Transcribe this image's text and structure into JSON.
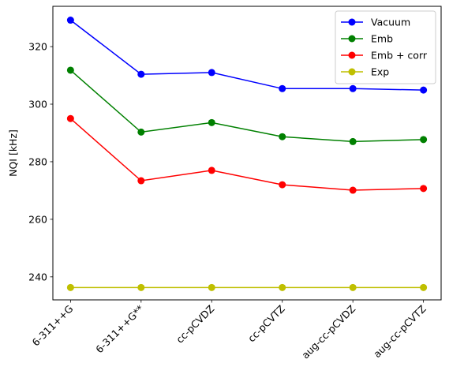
{
  "chart_data": {
    "type": "line",
    "title": "",
    "xlabel": "",
    "ylabel": "NQI [kHz]",
    "categories": [
      "6-311++G",
      "6-311++G**",
      "cc-pCVDZ",
      "cc-pCVTZ",
      "aug-cc-pCVDZ",
      "aug-cc-pCVTZ"
    ],
    "ylim": [
      232,
      334
    ],
    "yticks": [
      240,
      260,
      280,
      300,
      320
    ],
    "grid": false,
    "legend_position": "top-right",
    "series": [
      {
        "name": "Vacuum",
        "color": "#0000ff",
        "values": [
          329.2,
          310.4,
          311.0,
          305.4,
          305.4,
          304.9
        ]
      },
      {
        "name": "Emb",
        "color": "#008000",
        "values": [
          311.8,
          290.3,
          293.6,
          288.7,
          287.0,
          287.7
        ]
      },
      {
        "name": "Emb + corr",
        "color": "#ff0000",
        "values": [
          295.0,
          273.4,
          277.0,
          272.0,
          270.1,
          270.7
        ]
      },
      {
        "name": "Exp",
        "color": "#bfbf00",
        "values": [
          236.3,
          236.3,
          236.3,
          236.3,
          236.3,
          236.3
        ]
      }
    ]
  }
}
